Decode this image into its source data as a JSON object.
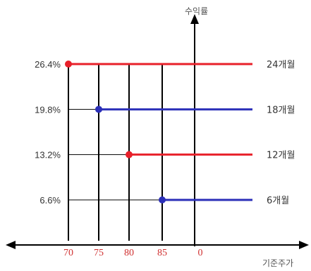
{
  "chart_data": {
    "type": "line",
    "y_axis_title": "수익률",
    "x_axis_title": "기준주가",
    "x_ticks": [
      "70",
      "75",
      "80",
      "85",
      "0"
    ],
    "y_ticks": [
      "26.4%",
      "19.8%",
      "13.2%",
      "6.6%"
    ],
    "series": [
      {
        "name": "24개월",
        "strike": 70,
        "yield": 26.4,
        "color": "#e8202a"
      },
      {
        "name": "18개월",
        "strike": 75,
        "yield": 19.8,
        "color": "#2b2fb8"
      },
      {
        "name": "12개월",
        "strike": 80,
        "yield": 13.2,
        "color": "#e8202a"
      },
      {
        "name": "6개월",
        "strike": 85,
        "yield": 6.6,
        "color": "#2b2fb8"
      }
    ],
    "tick_color": "#d03030",
    "axis_color": "#000000",
    "grid": true
  }
}
